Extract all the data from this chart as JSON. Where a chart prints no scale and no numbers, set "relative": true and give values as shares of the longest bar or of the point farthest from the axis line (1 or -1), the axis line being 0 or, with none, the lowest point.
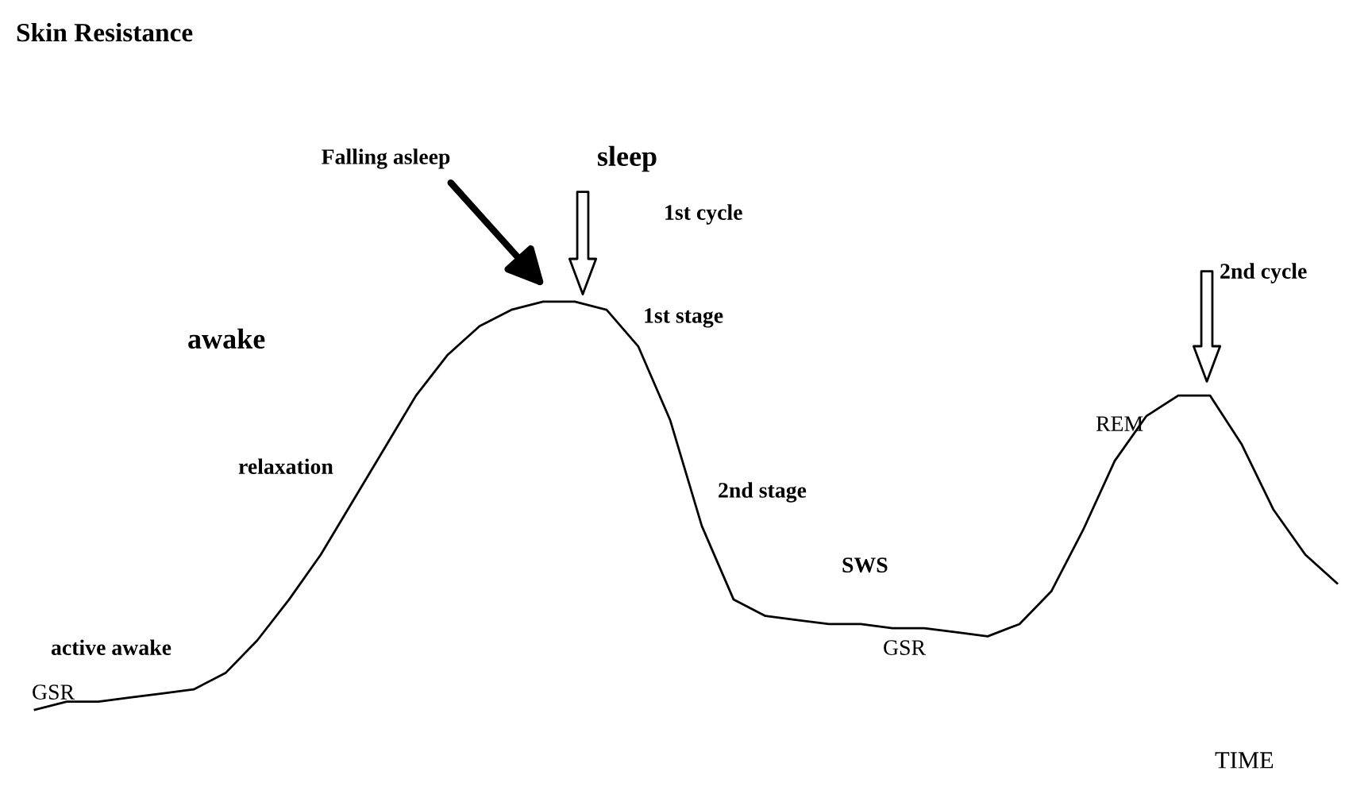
{
  "chart_data": {
    "type": "line",
    "relative": true,
    "xlabel": "TIME",
    "color": "#000000",
    "grid": false,
    "legend": false,
    "marker": "none",
    "line_style": "solid",
    "categories": [
      null,
      null,
      null,
      null,
      null,
      null,
      null,
      null,
      null,
      null,
      null,
      null,
      null,
      null,
      null,
      null,
      null,
      null,
      null,
      null,
      null,
      null,
      null,
      null,
      null,
      null,
      null,
      null,
      null,
      null,
      null,
      null,
      null,
      null,
      null,
      null,
      null,
      null,
      null,
      null,
      null,
      null
    ],
    "values": [
      0,
      0.02,
      0.02,
      0.03,
      0.04,
      0.05,
      0.09,
      0.17,
      0.27,
      0.38,
      0.51,
      0.64,
      0.77,
      0.87,
      0.94,
      0.98,
      1.0,
      1.0,
      0.98,
      0.89,
      0.71,
      0.45,
      0.27,
      0.23,
      0.22,
      0.21,
      0.21,
      0.2,
      0.2,
      0.19,
      0.18,
      0.21,
      0.29,
      0.44,
      0.61,
      0.72,
      0.77,
      0.77,
      0.65,
      0.49,
      0.38,
      0.31
    ],
    "annotations": [
      "Skin Resistance",
      "Falling asleep",
      "sleep",
      "1st cycle",
      "1st stage",
      "awake",
      "relaxation",
      "2nd stage",
      "SWS",
      "active awake",
      "GSR",
      "GSR",
      "REM",
      "2nd cycle"
    ]
  }
}
